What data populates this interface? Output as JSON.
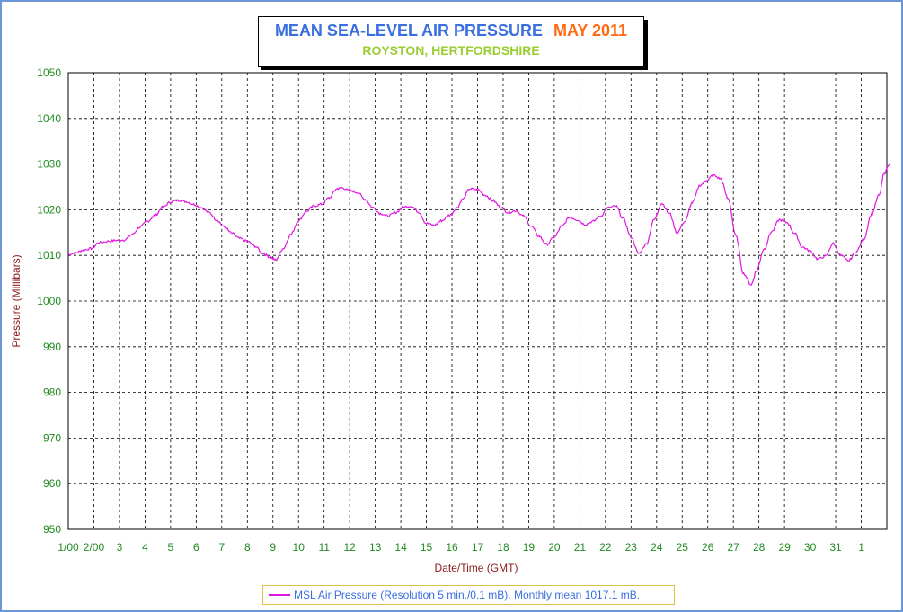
{
  "title": {
    "main": "MEAN SEA-LEVEL AIR PRESSURE",
    "date": "MAY 2011",
    "location": "ROYSTON, HERTFORDSHIRE"
  },
  "legend": {
    "label": "MSL Air Pressure (Resolution 5 min./0.1 mB). Monthly mean 1017.1 mB."
  },
  "colors": {
    "series": "#e016e0",
    "tick_labels": "#228b22",
    "axis_titles": "#8b1a1a",
    "title_main": "#3a6fe0",
    "title_date": "#ff6a14",
    "title_location": "#9acd32"
  },
  "chart_data": {
    "type": "line",
    "xlabel": "Date/Time (GMT)",
    "ylabel": "Pressure (Millibars)",
    "ylim": [
      950,
      1050
    ],
    "yticks": [
      950,
      960,
      970,
      980,
      990,
      1000,
      1010,
      1020,
      1030,
      1040,
      1050
    ],
    "xticks": [
      "1/00",
      "2/00",
      "3",
      "4",
      "5",
      "6",
      "7",
      "8",
      "9",
      "10",
      "11",
      "12",
      "13",
      "14",
      "15",
      "16",
      "17",
      "18",
      "19",
      "20",
      "21",
      "22",
      "23",
      "24",
      "25",
      "26",
      "27",
      "28",
      "29",
      "30",
      "31",
      "1"
    ],
    "grid": true,
    "series": [
      {
        "name": "MSL Air Pressure (Resolution 5 min./0.1 mB). Monthly mean 1017.1 mB.",
        "x_days": [
          0.0,
          0.3,
          0.6,
          0.9,
          1.2,
          1.6,
          1.9,
          2.2,
          2.5,
          2.8,
          3.1,
          3.4,
          3.7,
          4.0,
          4.3,
          4.6,
          4.9,
          5.2,
          5.5,
          5.8,
          6.1,
          6.4,
          6.7,
          7.0,
          7.3,
          7.6,
          7.9,
          8.1,
          8.4,
          8.7,
          9.0,
          9.3,
          9.6,
          9.9,
          10.2,
          10.5,
          10.7,
          11.0,
          11.3,
          11.6,
          11.9,
          12.2,
          12.5,
          12.8,
          13.1,
          13.4,
          13.7,
          14.0,
          14.3,
          14.6,
          14.9,
          15.2,
          15.4,
          15.7,
          16.0,
          16.3,
          16.6,
          16.9,
          17.2,
          17.5,
          17.8,
          18.1,
          18.4,
          18.7,
          19.0,
          19.3,
          19.6,
          19.9,
          20.2,
          20.5,
          20.8,
          21.1,
          21.4,
          21.7,
          22.0,
          22.3,
          22.6,
          22.9,
          23.2,
          23.5,
          23.8,
          24.1,
          24.4,
          24.7,
          25.0,
          25.2,
          25.5,
          25.8,
          26.1,
          26.4,
          26.7,
          26.9,
          27.2,
          27.5,
          27.8,
          28.1,
          28.4,
          28.7,
          29.0,
          29.3,
          29.6,
          29.9,
          30.2,
          30.5,
          30.8,
          31.1,
          31.4,
          31.7,
          31.9,
          32.1
        ],
        "values": [
          1010.2,
          1010.6,
          1011.2,
          1011.5,
          1012.8,
          1013.1,
          1013.3,
          1013.4,
          1014.6,
          1016.2,
          1017.5,
          1018.8,
          1020.6,
          1021.7,
          1022.1,
          1021.8,
          1021.2,
          1020.5,
          1019.4,
          1017.8,
          1016.2,
          1014.8,
          1013.7,
          1013.1,
          1012.0,
          1010.5,
          1009.6,
          1009.0,
          1011.5,
          1014.6,
          1017.6,
          1019.6,
          1020.8,
          1021.2,
          1022.6,
          1024.6,
          1024.8,
          1024.2,
          1023.8,
          1022.3,
          1020.5,
          1019.2,
          1018.6,
          1019.4,
          1020.6,
          1020.8,
          1019.5,
          1017.0,
          1016.6,
          1017.6,
          1018.8,
          1020.4,
          1022.2,
          1024.6,
          1024.4,
          1023.2,
          1022.0,
          1020.6,
          1019.4,
          1019.8,
          1018.6,
          1016.4,
          1014.2,
          1012.4,
          1014.0,
          1016.4,
          1018.4,
          1017.8,
          1016.8,
          1017.4,
          1018.6,
          1020.4,
          1020.8,
          1018.0,
          1014.0,
          1010.4,
          1012.5,
          1017.8,
          1021.4,
          1019.2,
          1015.0,
          1017.4,
          1021.6,
          1025.4,
          1026.6,
          1027.6,
          1026.8,
          1022.4,
          1014.2,
          1006.0,
          1003.6,
          1006.6,
          1011.4,
          1015.2,
          1017.8,
          1017.2,
          1014.8,
          1011.8,
          1011.0,
          1009.2,
          1009.8,
          1012.6,
          1010.0,
          1008.8,
          1010.8,
          1013.6,
          1019.0,
          1023.2,
          1028.0,
          1030.0
        ]
      }
    ]
  }
}
